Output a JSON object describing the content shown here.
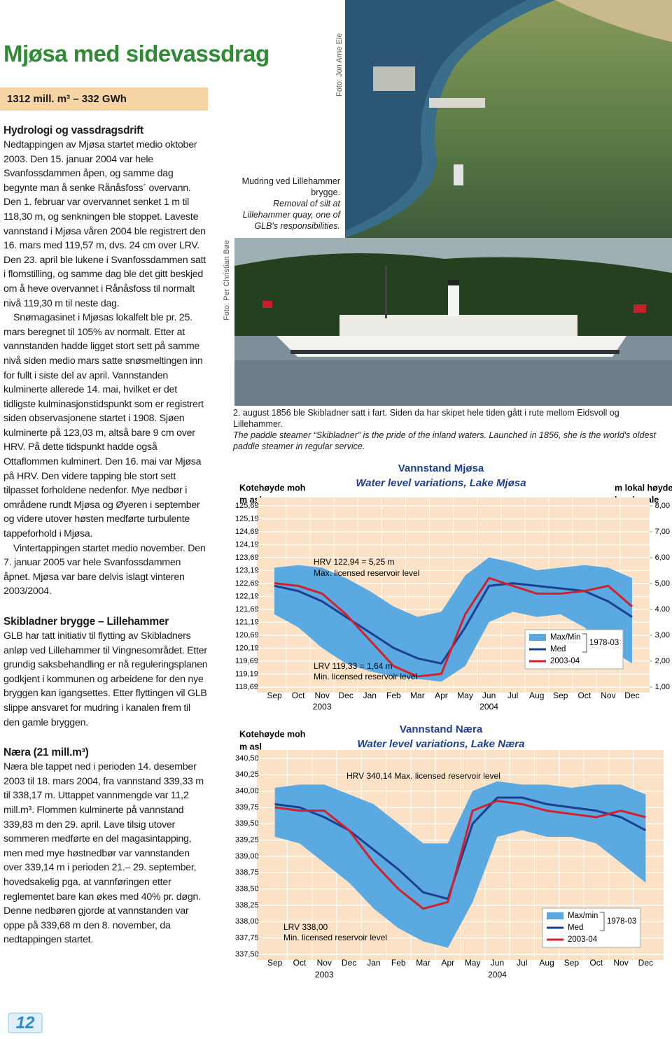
{
  "header": {
    "title": "Mjøsa med sidevassdrag",
    "stats": "1312 mill. m³ – 332 GWh"
  },
  "sections": [
    {
      "heading": "Hydrologi og vassdragsdrift",
      "paragraphs": [
        "Nedtappingen av Mjøsa startet medio oktober 2003. Den 15. januar 2004 var hele Svanfossdammen åpen, og samme dag begynte man å senke Rånåsfoss´ overvann. Den 1. februar var overvannet senket 1 m til 118,30 m, og senkningen ble stoppet. Laveste vannstand i Mjøsa våren 2004 ble registrert den 16. mars med 119,57 m, dvs. 24 cm over LRV. Den 23. april ble lukene i Svanfossdammen satt i flomstilling, og samme dag ble det gitt beskjed om å heve overvannet i Rånåsfoss til normalt nivå 119,30 m til neste dag.",
        "Snømagasinet i Mjøsas lokalfelt ble pr. 25. mars beregnet til 105% av normalt. Etter at vannstanden hadde ligget stort sett på samme nivå siden medio mars satte snøsmeltingen inn for fullt i siste del av april. Vannstanden kulminerte allerede 14. mai, hvilket er det tidligste kulminasjonstidspunkt som er registrert siden observasjonene startet i 1908. Sjøen kulminerte på 123,03 m, altså bare 9 cm over HRV. På dette tidspunkt hadde også Ottaflommen kulminert. Den 16. mai var Mjøsa på HRV. Den videre tapping ble stort sett tilpasset forholdene nedenfor. Mye nedbør i områdene rundt Mjøsa og Øyeren i september og videre utover høsten medførte turbulente tappeforhold i Mjøsa.",
        "Vintertappingen startet medio november. Den 7. januar 2005 var hele Svanfossdammen åpnet. Mjøsa var bare delvis islagt vinteren 2003/2004."
      ]
    },
    {
      "heading": "Skibladner brygge – Lillehammer",
      "paragraphs": [
        "GLB har tatt initiativ til flytting av Skibladners anløp ved Lillehammer til Vingnesområdet. Etter grundig saksbehandling er nå reguleringsplanen godkjent i kommunen og arbeidene for den nye bryggen kan igangsettes. Etter flyttingen vil GLB slippe ansvaret for mudring i kanalen frem til den gamle bryggen."
      ]
    },
    {
      "heading": "Næra (21 mill.m³)",
      "paragraphs": [
        "Næra ble tappet ned i perioden 14. desember 2003 til 18. mars 2004, fra vannstand 339,33 m til 338,17 m. Uttappet vannmengde var 11,2 mill.m³. Flommen kulminerte på vannstand 339,83 m den 29. april. Lave tilsig utover sommeren medførte en del magasintapping, men med mye høstnedbør var vannstanden over 339,14 m i perioden 21.– 29. september, hovedsakelig pga. at vannføringen etter reglementet bare kan økes med 40% pr. døgn. Denne nedbøren gjorde at vannstanden var oppe på 339,68 m den 8. november, da nedtappingen startet."
      ]
    }
  ],
  "photos": [
    {
      "credit": "Foto: Jon Arne Eie",
      "caption": "Mudring ved Lillehammer brygge.",
      "caption_en": "Removal of silt at Lillehammer quay, one of GLB's responsibilities."
    },
    {
      "credit": "Foto: Per Christian Bøe",
      "caption": "2. august 1856 ble Skibladner satt i fart. Siden da har skipet hele tiden gått i rute mellom Eidsvoll og Lillehammer.",
      "caption_en": "The paddle steamer “Skibladner” is the pride of the inland waters. Launched in 1856, she is the world's oldest paddle steamer in regular service."
    }
  ],
  "page_number": "12",
  "chart_data": [
    {
      "type": "band-line",
      "title": "Vannstand Mjøsa",
      "subtitle": "Water level variations, Lake Mjøsa",
      "ylabel": [
        "Kotehøyde moh",
        "m asl"
      ],
      "y2label": [
        "m lokal høyde",
        "local scale"
      ],
      "categories": [
        "Sep",
        "Oct",
        "Nov",
        "Dec",
        "Jan",
        "Feb",
        "Mar",
        "Apr",
        "May",
        "Jun",
        "Jul",
        "Aug",
        "Sep",
        "Oct",
        "Nov",
        "Dec"
      ],
      "year_labels": [
        {
          "text": "2003",
          "category": 2
        },
        {
          "text": "2004",
          "category": 9
        }
      ],
      "ylim": [
        118.69,
        125.69
      ],
      "yticks": [
        {
          "value": 125.69,
          "label": "125,69"
        },
        {
          "value": 125.19,
          "label": "125,19"
        },
        {
          "value": 124.69,
          "label": "124,69"
        },
        {
          "value": 124.19,
          "label": "124,19"
        },
        {
          "value": 123.69,
          "label": "123,69"
        },
        {
          "value": 123.19,
          "label": "123,19"
        },
        {
          "value": 122.69,
          "label": "122,69"
        },
        {
          "value": 122.19,
          "label": "122,19"
        },
        {
          "value": 121.69,
          "label": "121,69"
        },
        {
          "value": 121.19,
          "label": "121,19"
        },
        {
          "value": 120.69,
          "label": "120,69"
        },
        {
          "value": 120.19,
          "label": "120,19"
        },
        {
          "value": 119.69,
          "label": "119,69"
        },
        {
          "value": 119.19,
          "label": "119,19"
        },
        {
          "value": 118.69,
          "label": "118,69"
        }
      ],
      "y2lim": [
        1,
        8
      ],
      "y2ticks": [
        {
          "value": 8,
          "label": "8,00"
        },
        {
          "value": 7,
          "label": "7,00"
        },
        {
          "value": 6,
          "label": "6,00"
        },
        {
          "value": 5,
          "label": "5,00"
        },
        {
          "value": 4,
          "label": "4.00"
        },
        {
          "value": 3,
          "label": "3,00"
        },
        {
          "value": 2,
          "label": "2,00"
        },
        {
          "value": 1,
          "label": "1,00"
        }
      ],
      "grid": true,
      "annotations": [
        "HRV  122,94 = 5,25 m",
        "Max. licensed reservoir level",
        "LRV  119,33 = 1,64 m",
        "Min. licensed reservoir level"
      ],
      "legend_period": "1978-03",
      "series": [
        {
          "name": "Max/Min",
          "color": "#5aa9e0",
          "max": [
            123.3,
            123.4,
            123.3,
            122.9,
            122.4,
            121.8,
            121.4,
            121.6,
            123.0,
            123.7,
            123.5,
            123.2,
            123.3,
            123.4,
            123.3,
            122.9
          ],
          "min": [
            121.5,
            121.0,
            120.2,
            119.6,
            119.3,
            119.1,
            119.0,
            118.9,
            119.5,
            121.2,
            121.6,
            121.4,
            121.5,
            121.0,
            120.2,
            119.6
          ]
        },
        {
          "name": "Med",
          "color": "#1d3f8f",
          "values": [
            122.6,
            122.4,
            122.0,
            121.4,
            120.8,
            120.2,
            119.8,
            119.6,
            121.0,
            122.6,
            122.7,
            122.6,
            122.5,
            122.4,
            122.0,
            121.4
          ]
        },
        {
          "name": "2003-04",
          "color": "#d3202b",
          "values": [
            122.7,
            122.6,
            122.3,
            121.5,
            120.5,
            119.5,
            119.1,
            119.2,
            121.5,
            122.9,
            122.6,
            122.3,
            122.3,
            122.4,
            122.6,
            121.8
          ]
        }
      ]
    },
    {
      "type": "band-line",
      "title": "Vannstand Næra",
      "subtitle": "Water level variations, Lake Næra",
      "ylabel": [
        "Kotehøyde moh",
        "m asl"
      ],
      "categories": [
        "Sep",
        "Oct",
        "Nov",
        "Dec",
        "Jan",
        "Feb",
        "Mar",
        "Apr",
        "May",
        "Jun",
        "Jul",
        "Aug",
        "Sep",
        "Oct",
        "Nov",
        "Dec"
      ],
      "year_labels": [
        {
          "text": "2003",
          "category": 2
        },
        {
          "text": "2004",
          "category": 9
        }
      ],
      "ylim": [
        337.5,
        340.5
      ],
      "yticks": [
        {
          "value": 340.5,
          "label": "340,50"
        },
        {
          "value": 340.25,
          "label": "340,25"
        },
        {
          "value": 340,
          "label": "340,00"
        },
        {
          "value": 339.75,
          "label": "339,75"
        },
        {
          "value": 339.5,
          "label": "339,50"
        },
        {
          "value": 339.25,
          "label": "339,25"
        },
        {
          "value": 339,
          "label": "339,00"
        },
        {
          "value": 338.75,
          "label": "338,75"
        },
        {
          "value": 338.5,
          "label": "338,50"
        },
        {
          "value": 338.25,
          "label": "338,25"
        },
        {
          "value": 338,
          "label": "338,00"
        },
        {
          "value": 337.75,
          "label": "337,75"
        },
        {
          "value": 337.5,
          "label": "337,50"
        }
      ],
      "grid": true,
      "annotations": [
        "HRV  340,14 Max. licensed reservoir level",
        "LRV  338,00",
        "Min. licensed reservoir level"
      ],
      "legend_period": "1978-03",
      "series": [
        {
          "name": "Max/min",
          "color": "#5aa9e0",
          "max": [
            340.05,
            340.1,
            340.1,
            339.95,
            339.8,
            339.5,
            339.2,
            339.2,
            340.0,
            340.15,
            340.1,
            340.1,
            340.05,
            340.1,
            340.1,
            339.95
          ],
          "min": [
            339.3,
            339.2,
            338.9,
            338.6,
            338.2,
            337.9,
            337.7,
            337.6,
            338.3,
            339.3,
            339.4,
            339.3,
            339.3,
            339.2,
            338.9,
            338.6
          ]
        },
        {
          "name": "Med",
          "color": "#1d3f8f",
          "values": [
            339.8,
            339.75,
            339.6,
            339.4,
            339.1,
            338.8,
            338.45,
            338.35,
            339.5,
            339.9,
            339.9,
            339.8,
            339.75,
            339.7,
            339.6,
            339.4
          ]
        },
        {
          "name": "2003-04",
          "color": "#d3202b",
          "values": [
            339.75,
            339.7,
            339.7,
            339.4,
            338.9,
            338.5,
            338.2,
            338.3,
            339.7,
            339.85,
            339.8,
            339.7,
            339.65,
            339.6,
            339.7,
            339.6
          ]
        }
      ]
    }
  ]
}
